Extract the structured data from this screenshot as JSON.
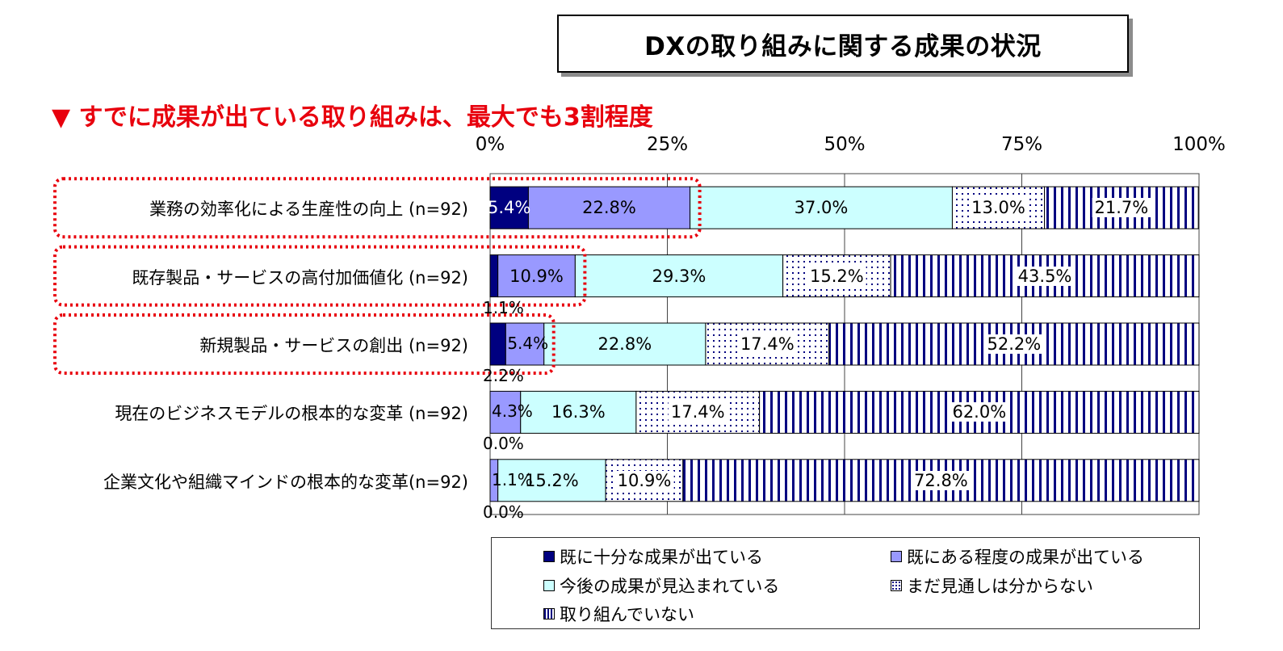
{
  "page": {
    "title": "DXの取り組みに関する成果の状況",
    "subtitle": "▼ すでに成果が出ている取り組みは、最大でも3割程度"
  },
  "colors": {
    "sufficient": "#000080",
    "some": "#9999ff",
    "future": "#ccffff",
    "unknown_dots": "#000080",
    "none_stripes": "#000080",
    "highlight": "#e8000d"
  },
  "chart_data": {
    "type": "bar",
    "orientation": "horizontal-stacked-100",
    "x_ticks": [
      "0%",
      "25%",
      "50%",
      "75%",
      "100%"
    ],
    "xlim": [
      0,
      100
    ],
    "grid": true,
    "legend_position": "bottom",
    "categories": [
      "業務の効率化による生産性の向上 (n=92)",
      "既存製品・サービスの高付加価値化 (n=92)",
      "新規製品・サービスの創出 (n=92)",
      "現在のビジネスモデルの根本的な変革 (n=92)",
      "企業文化や組織マインドの根本的な変革(n=92)"
    ],
    "series": [
      {
        "name": "既に十分な成果が出ている",
        "values": [
          5.4,
          1.1,
          2.2,
          0.0,
          0.0
        ]
      },
      {
        "name": "既にある程度の成果が出ている",
        "values": [
          22.8,
          10.9,
          5.4,
          4.3,
          1.1
        ]
      },
      {
        "name": "今後の成果が見込まれている",
        "values": [
          37.0,
          29.3,
          22.8,
          16.3,
          15.2
        ]
      },
      {
        "name": "まだ見通しは分からない",
        "values": [
          13.0,
          15.2,
          17.4,
          17.4,
          10.9
        ]
      },
      {
        "name": "取り組んでいない",
        "values": [
          21.7,
          43.5,
          52.2,
          62.0,
          72.8
        ]
      }
    ],
    "value_labels": [
      [
        "5.4%",
        "22.8%",
        "37.0%",
        "13.0%",
        "21.7%"
      ],
      [
        "1.1%",
        "10.9%",
        "29.3%",
        "15.2%",
        "43.5%"
      ],
      [
        "2.2%",
        "5.4%",
        "22.8%",
        "17.4%",
        "52.2%"
      ],
      [
        "0.0%",
        "4.3%",
        "16.3%",
        "17.4%",
        "62.0%"
      ],
      [
        "0.0%",
        "1.1%",
        "15.2%",
        "10.9%",
        "72.8%"
      ]
    ],
    "highlighted_rows": [
      0,
      1,
      2
    ]
  }
}
